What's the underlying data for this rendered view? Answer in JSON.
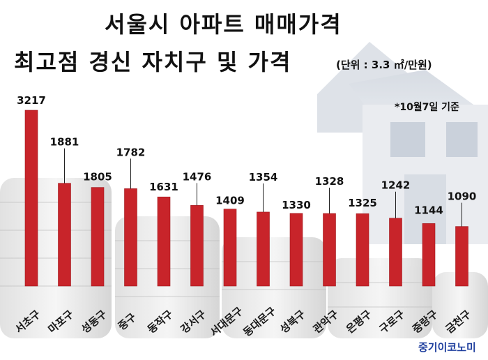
{
  "title_line1": "서울시 아파트 매매가격",
  "title_line2": "최고점 경신 자치구 및 가격",
  "unit_note": "(단위 : 3.3 ㎡/만원)",
  "basis_note": "*10월7일 기준",
  "brand": "중기이코노미",
  "colors": {
    "bar": "#c8242a",
    "bar_dark": "#9e1a1f",
    "text": "#111111",
    "brand": "#1f3f9e"
  },
  "chart_data": {
    "type": "bar",
    "title": "서울시 아파트 매매가격 최고점 경신 자치구 및 가격",
    "unit": "(단위 : 3.3 ㎡/만원)",
    "categories": [
      "서초구",
      "마포구",
      "성동구",
      "중구",
      "동작구",
      "강서구",
      "서대문구",
      "동대문구",
      "성북구",
      "관악구",
      "은평구",
      "구로구",
      "중랑구",
      "금천구"
    ],
    "values": [
      3217,
      1881,
      1805,
      1782,
      1631,
      1476,
      1409,
      1354,
      1330,
      1328,
      1325,
      1242,
      1144,
      1090
    ],
    "ylim": [
      0,
      3217
    ],
    "grid": false,
    "legend": "none"
  }
}
